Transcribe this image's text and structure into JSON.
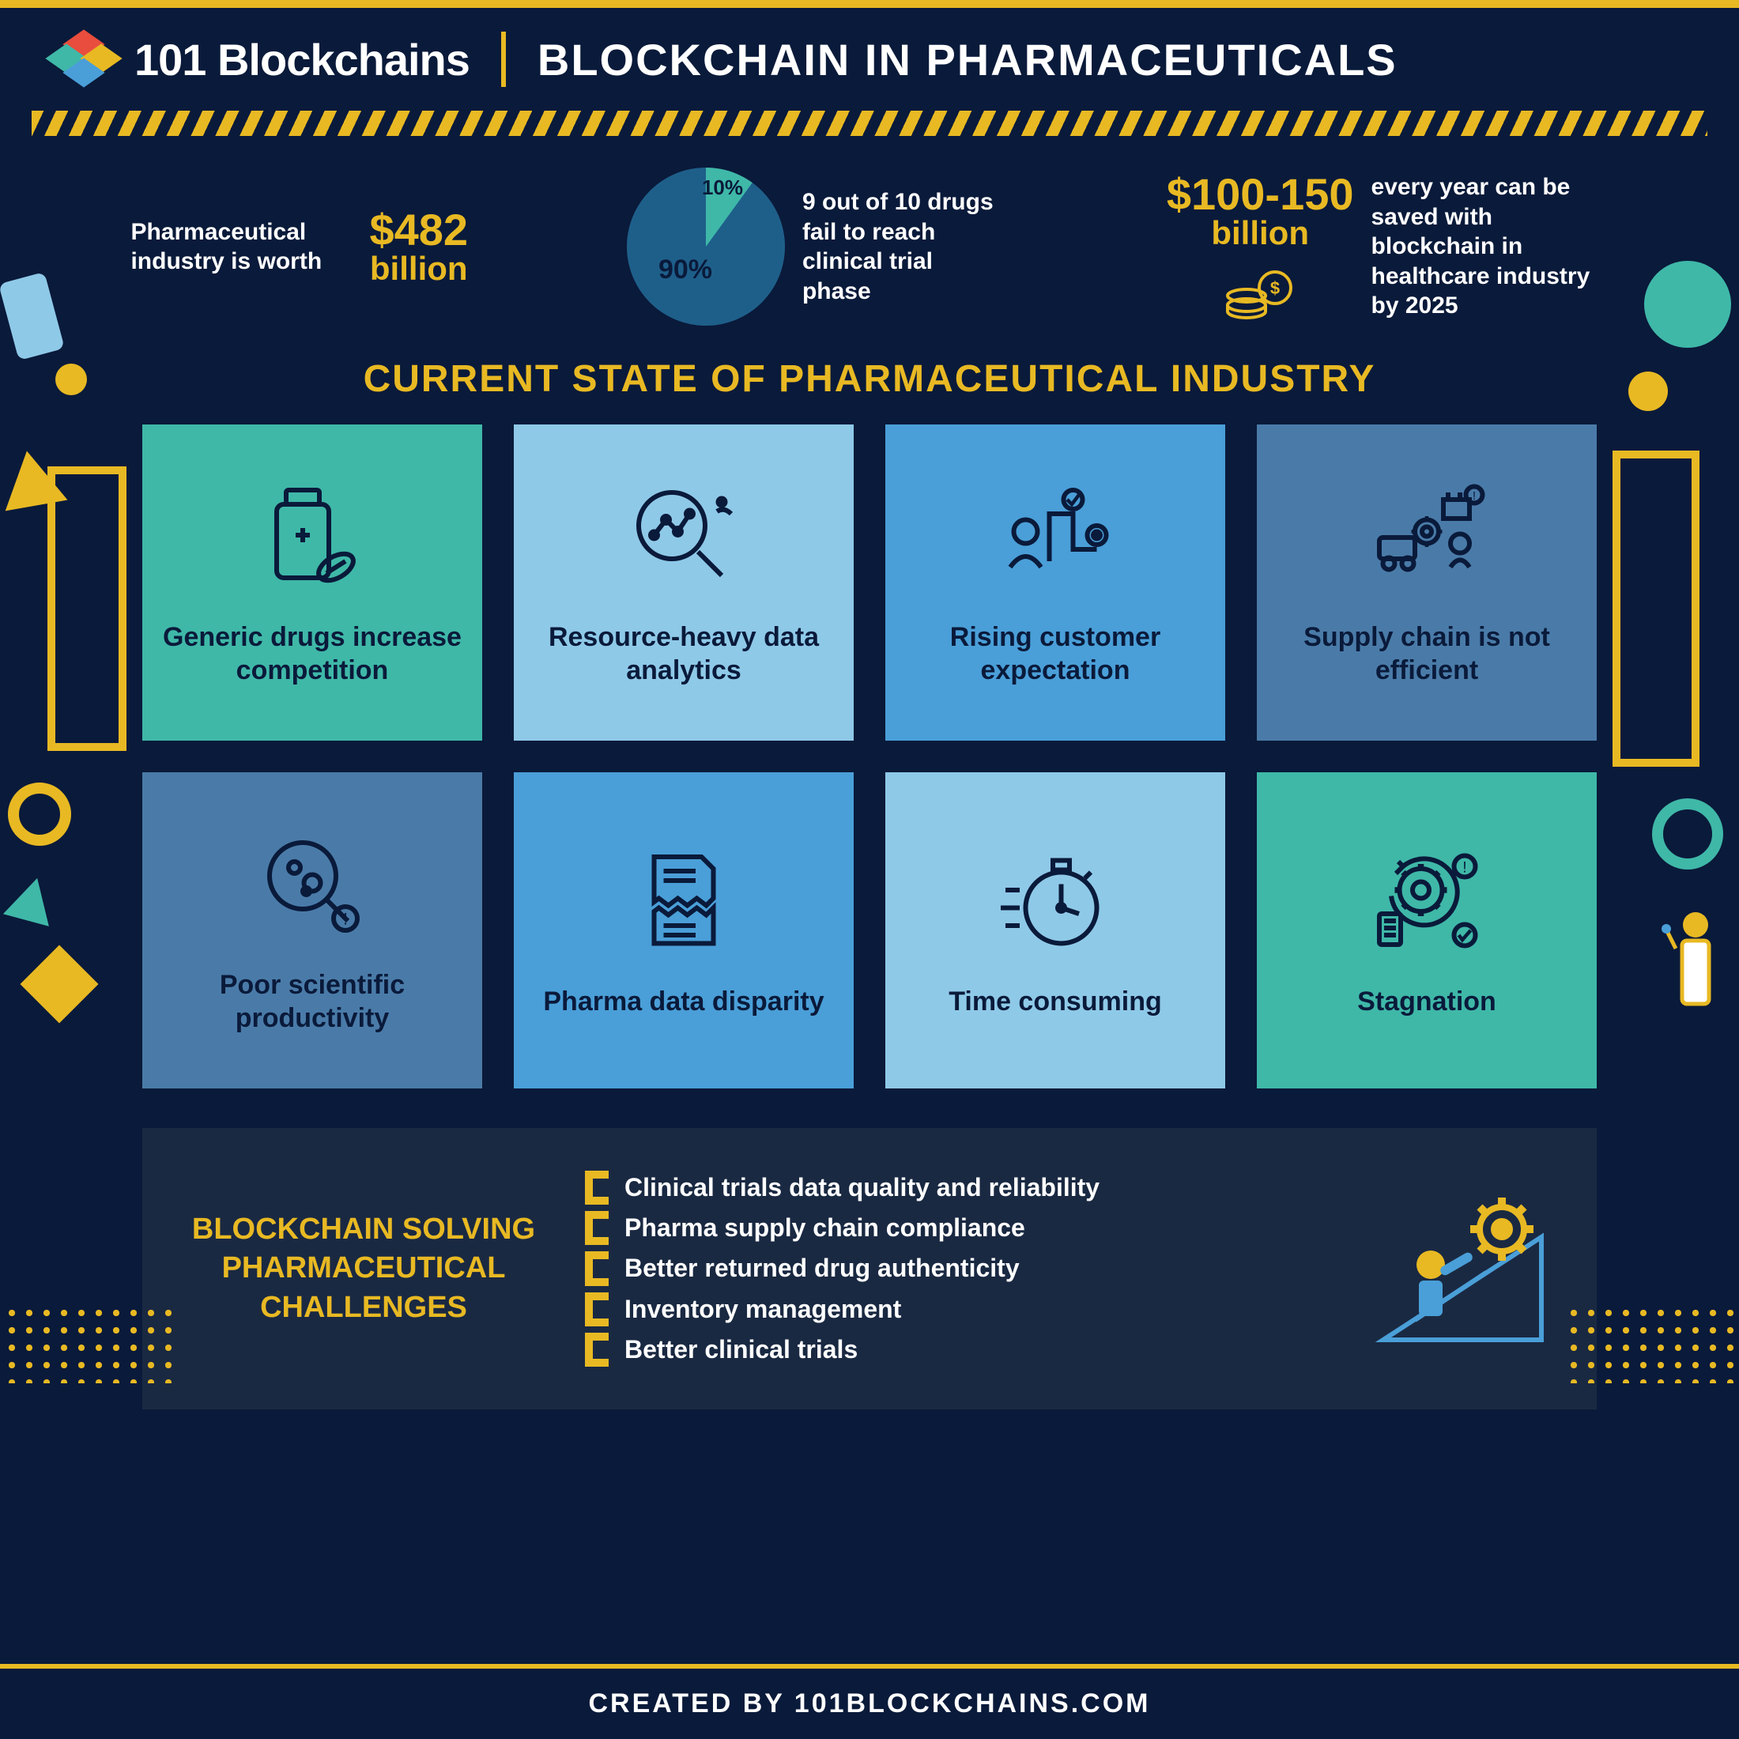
{
  "brand": "101 Blockchains",
  "title": "BLOCKCHAIN IN PHARMACEUTICALS",
  "colors": {
    "bg": "#0a1a3a",
    "accent": "#e8b923",
    "teal": "#3fb8a8",
    "blue_dark": "#1e5f8a",
    "blue_light": "#8fc9e8",
    "blue_med": "#4a9fd8",
    "steel": "#4a7ba8",
    "panel": "#1a2942",
    "icon_stroke": "#0a1a3a"
  },
  "stats": {
    "worth_text": "Pharmaceutical industry is worth",
    "worth_value": "$482",
    "worth_unit": "billion",
    "pie": {
      "slice1": 10,
      "slice2": 90,
      "label1": "10%",
      "label2": "90%",
      "color1": "#3fb8a8",
      "color2": "#1e5f8a"
    },
    "fail_text": "9 out of 10 drugs fail to reach clinical trial phase",
    "save_value": "$100-150",
    "save_unit": "billion",
    "save_text": "every year can be saved with blockchain in healthcare industry by 2025"
  },
  "section_title": "CURRENT STATE OF PHARMACEUTICAL INDUSTRY",
  "cards": [
    {
      "label": "Generic drugs increase competition",
      "bg": "#3fb8a8",
      "icon": "bottle"
    },
    {
      "label": "Resource-heavy data analytics",
      "bg": "#8fc9e8",
      "icon": "magnifier"
    },
    {
      "label": "Rising customer expectation",
      "bg": "#4a9fd8",
      "icon": "people-path"
    },
    {
      "label": "Supply chain is not efficient",
      "bg": "#4a7ba8",
      "icon": "supply"
    },
    {
      "label": "Poor scientific productivity",
      "bg": "#4a7ba8",
      "icon": "microscope"
    },
    {
      "label": "Pharma data disparity",
      "bg": "#4a9fd8",
      "icon": "torn-doc"
    },
    {
      "label": "Time consuming",
      "bg": "#8fc9e8",
      "icon": "stopwatch"
    },
    {
      "label": "Stagnation",
      "bg": "#3fb8a8",
      "icon": "gear-cycle"
    }
  ],
  "challenges_title": "BLOCKCHAIN SOLVING PHARMACEUTICAL CHALLENGES",
  "challenges": [
    "Clinical trials data quality and reliability",
    "Pharma supply chain compliance",
    "Better returned drug authenticity",
    "Inventory management",
    "Better clinical trials"
  ],
  "footer": "CREATED BY 101BLOCKCHAINS.COM"
}
